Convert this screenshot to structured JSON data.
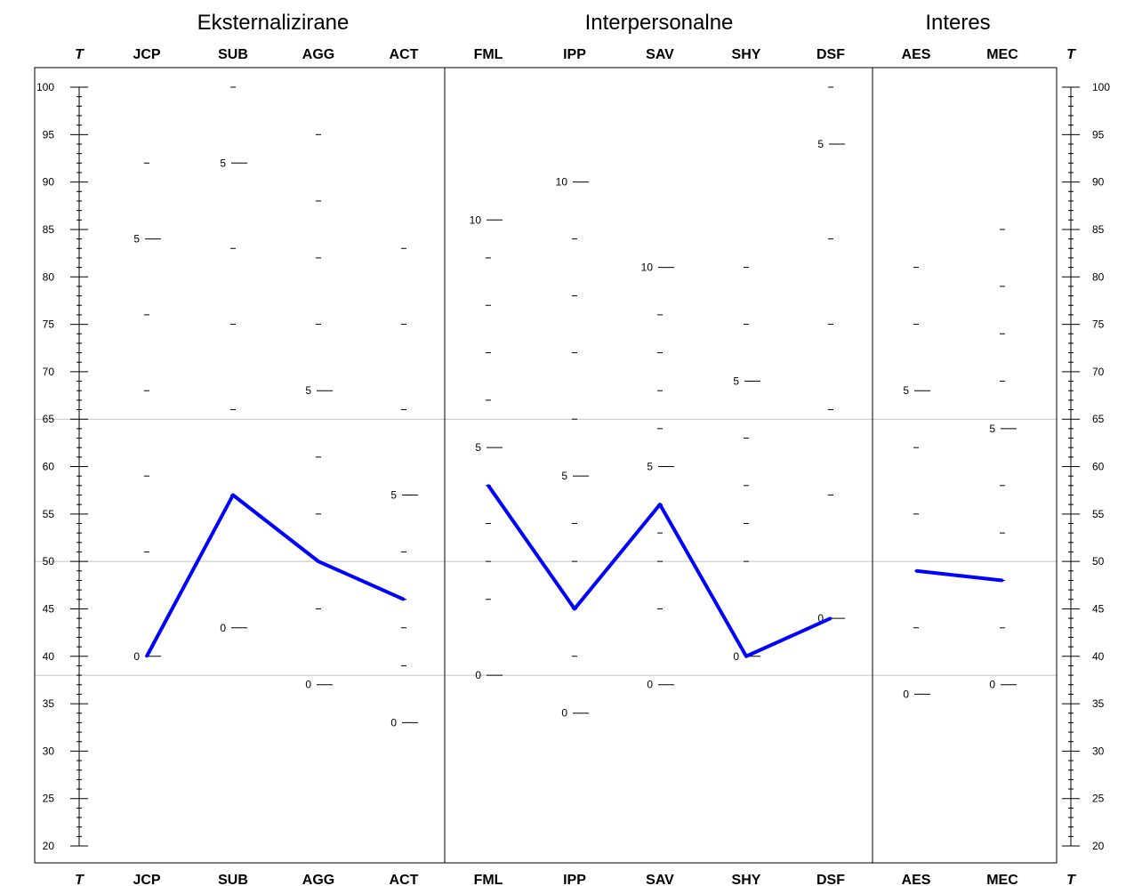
{
  "chart_data": {
    "type": "line",
    "groups": [
      {
        "title": "Eksternalizirane",
        "scales": [
          "JCP",
          "SUB",
          "AGG",
          "ACT"
        ]
      },
      {
        "title": "Interpersonalne",
        "scales": [
          "FML",
          "IPP",
          "SAV",
          "SHY",
          "DSF"
        ]
      },
      {
        "title": "Interes",
        "scales": [
          "AES",
          "MEC"
        ]
      }
    ],
    "axis_label": "T",
    "ylim": [
      20,
      100
    ],
    "y_ticks": [
      20,
      25,
      30,
      35,
      40,
      45,
      50,
      55,
      60,
      65,
      70,
      75,
      80,
      85,
      90,
      95,
      100
    ],
    "reference_lines": [
      65,
      50,
      38
    ],
    "raw_ticks": {
      "JCP": [
        {
          "t": 40,
          "label": "0"
        },
        {
          "t": 51
        },
        {
          "t": 59
        },
        {
          "t": 68
        },
        {
          "t": 76
        },
        {
          "t": 84,
          "label": "5"
        },
        {
          "t": 92
        }
      ],
      "SUB": [
        {
          "t": 43,
          "label": "0"
        },
        {
          "t": 57
        },
        {
          "t": 66
        },
        {
          "t": 75
        },
        {
          "t": 83
        },
        {
          "t": 92,
          "label": "5"
        },
        {
          "t": 100
        }
      ],
      "AGG": [
        {
          "t": 37,
          "label": "0"
        },
        {
          "t": 45
        },
        {
          "t": 50
        },
        {
          "t": 55
        },
        {
          "t": 61
        },
        {
          "t": 68,
          "label": "5"
        },
        {
          "t": 75
        },
        {
          "t": 82
        },
        {
          "t": 88
        },
        {
          "t": 95
        }
      ],
      "ACT": [
        {
          "t": 33,
          "label": "0"
        },
        {
          "t": 39
        },
        {
          "t": 43
        },
        {
          "t": 46
        },
        {
          "t": 51
        },
        {
          "t": 57,
          "label": "5"
        },
        {
          "t": 66
        },
        {
          "t": 75
        },
        {
          "t": 83
        }
      ],
      "FML": [
        {
          "t": 38,
          "label": "0"
        },
        {
          "t": 46
        },
        {
          "t": 50
        },
        {
          "t": 54
        },
        {
          "t": 58
        },
        {
          "t": 62,
          "label": "5"
        },
        {
          "t": 67
        },
        {
          "t": 72
        },
        {
          "t": 77
        },
        {
          "t": 82
        },
        {
          "t": 86,
          "label": "10"
        }
      ],
      "IPP": [
        {
          "t": 34,
          "label": "0"
        },
        {
          "t": 40
        },
        {
          "t": 45
        },
        {
          "t": 50
        },
        {
          "t": 54
        },
        {
          "t": 59,
          "label": "5"
        },
        {
          "t": 65
        },
        {
          "t": 72
        },
        {
          "t": 78
        },
        {
          "t": 84
        },
        {
          "t": 90,
          "label": "10"
        }
      ],
      "SAV": [
        {
          "t": 37,
          "label": "0"
        },
        {
          "t": 45
        },
        {
          "t": 50
        },
        {
          "t": 53
        },
        {
          "t": 56
        },
        {
          "t": 60,
          "label": "5"
        },
        {
          "t": 64
        },
        {
          "t": 68
        },
        {
          "t": 72
        },
        {
          "t": 76
        },
        {
          "t": 81,
          "label": "10"
        }
      ],
      "SHY": [
        {
          "t": 40,
          "label": "0"
        },
        {
          "t": 50
        },
        {
          "t": 54
        },
        {
          "t": 58
        },
        {
          "t": 63
        },
        {
          "t": 69,
          "label": "5"
        },
        {
          "t": 75
        },
        {
          "t": 81
        }
      ],
      "DSF": [
        {
          "t": 44,
          "label": "0"
        },
        {
          "t": 57
        },
        {
          "t": 66
        },
        {
          "t": 75
        },
        {
          "t": 84
        },
        {
          "t": 94,
          "label": "5"
        },
        {
          "t": 100
        }
      ],
      "AES": [
        {
          "t": 36,
          "label": "0"
        },
        {
          "t": 43
        },
        {
          "t": 55
        },
        {
          "t": 62
        },
        {
          "t": 68,
          "label": "5"
        },
        {
          "t": 75
        },
        {
          "t": 81
        }
      ],
      "MEC": [
        {
          "t": 37,
          "label": "0"
        },
        {
          "t": 43
        },
        {
          "t": 48
        },
        {
          "t": 53
        },
        {
          "t": 58
        },
        {
          "t": 64,
          "label": "5"
        },
        {
          "t": 69
        },
        {
          "t": 74
        },
        {
          "t": 79
        },
        {
          "t": 85
        }
      ]
    },
    "profile": {
      "segments": [
        [
          "JCP",
          "SUB",
          "AGG",
          "ACT"
        ],
        [
          "FML",
          "IPP",
          "SAV",
          "SHY",
          "DSF"
        ],
        [
          "AES",
          "MEC"
        ]
      ],
      "values": {
        "JCP": 40,
        "SUB": 57,
        "AGG": 50,
        "ACT": 46,
        "FML": 58,
        "IPP": 45,
        "SAV": 56,
        "SHY": 40,
        "DSF": 44,
        "AES": 49,
        "MEC": 48
      },
      "color": "#0000ff"
    },
    "grid_color": "#c0c0c0",
    "frame_color": "#000000"
  }
}
